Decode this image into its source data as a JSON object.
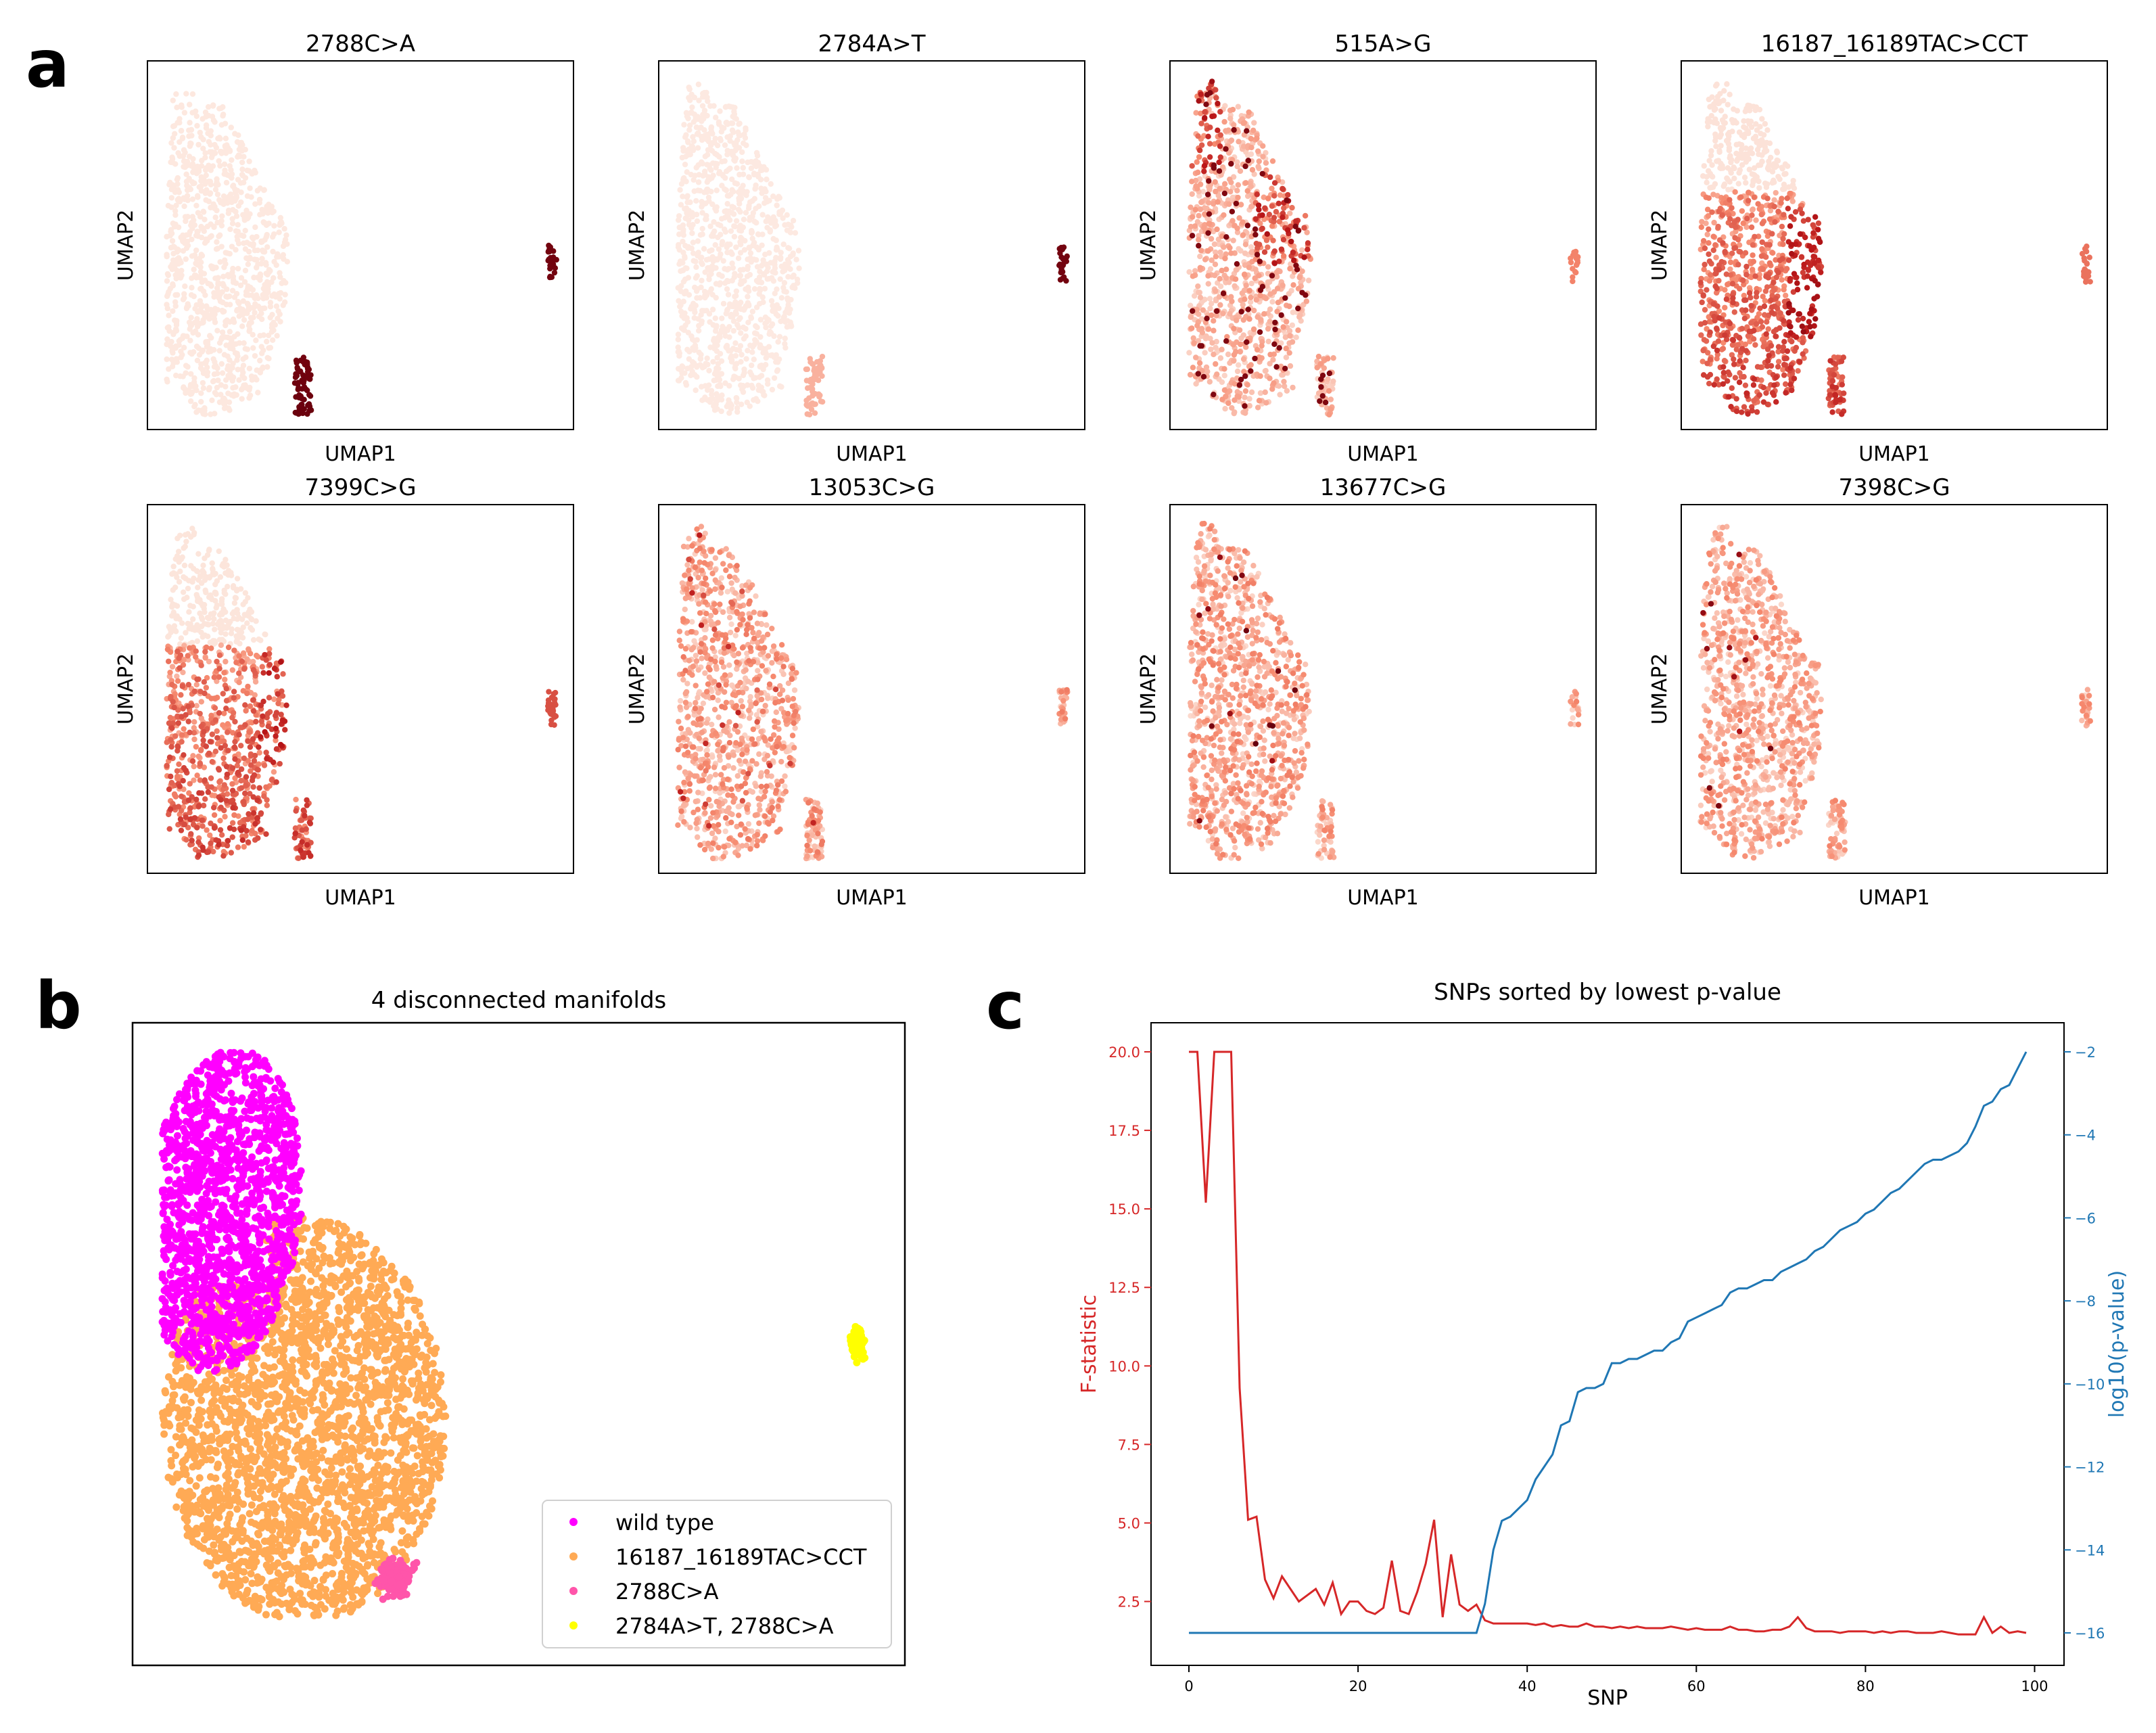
{
  "panel_letters": {
    "a": "a",
    "b": "b",
    "c": "c"
  },
  "colors": {
    "reds_light": "#fdeee6",
    "reds_mid": "#f6896e",
    "reds_dark": "#ba1618",
    "reds_darkest": "#67000d",
    "f_line": "#d62728",
    "p_line": "#1f77b4",
    "wild_type": "#ff00ff",
    "m16187": "#ffaa55",
    "m2788": "#ff55aa",
    "m2784": "#ffff00"
  },
  "panel_a": {
    "xlabel": "UMAP1",
    "ylabel": "UMAP2",
    "titles": [
      "2788C>A",
      "2784A>T",
      "515A>G",
      "16187_16189TAC>CCT",
      "7399C>G",
      "13053C>G",
      "13677C>G",
      "7398C>G"
    ]
  },
  "chart_data": [
    {
      "type": "scatter",
      "title": "4 disconnected manifolds",
      "legend_position": "lower-right",
      "series": [
        {
          "name": "wild type",
          "color": "#ff00ff"
        },
        {
          "name": "16187_16189TAC>CCT",
          "color": "#ffaa55"
        },
        {
          "name": "2788C>A",
          "color": "#ff55aa"
        },
        {
          "name": "2784A>T, 2788C>A",
          "color": "#ffff00"
        }
      ]
    },
    {
      "type": "line",
      "title": "SNPs sorted by lowest p-value",
      "xlabel": "SNP",
      "xlim": [
        0,
        99
      ],
      "xticks": [
        0,
        20,
        40,
        60,
        80,
        100
      ],
      "y_left": {
        "label": "F-statistic",
        "ticks": [
          2.5,
          5.0,
          7.5,
          10.0,
          12.5,
          15.0,
          17.5,
          20.0
        ]
      },
      "y_right": {
        "label": "log10(p-value)",
        "ticks": [
          -16,
          -14,
          -12,
          -10,
          -8,
          -6,
          -4,
          -2
        ]
      },
      "series": [
        {
          "name": "F-statistic",
          "axis": "left",
          "color": "#d62728",
          "values": [
            20.0,
            20.0,
            15.2,
            20.0,
            20.0,
            20.0,
            9.3,
            5.1,
            5.2,
            3.2,
            2.6,
            3.3,
            2.9,
            2.5,
            2.7,
            2.9,
            2.4,
            3.1,
            2.1,
            2.5,
            2.5,
            2.2,
            2.1,
            2.3,
            3.8,
            2.2,
            2.1,
            2.8,
            3.7,
            5.1,
            2.0,
            4.0,
            2.4,
            2.2,
            2.4,
            1.9,
            1.8,
            1.8,
            1.8,
            1.8,
            1.8,
            1.75,
            1.8,
            1.7,
            1.75,
            1.7,
            1.7,
            1.8,
            1.7,
            1.7,
            1.65,
            1.7,
            1.65,
            1.7,
            1.65,
            1.65,
            1.65,
            1.7,
            1.65,
            1.6,
            1.65,
            1.6,
            1.6,
            1.6,
            1.7,
            1.6,
            1.6,
            1.55,
            1.55,
            1.6,
            1.6,
            1.7,
            2.0,
            1.65,
            1.55,
            1.55,
            1.55,
            1.5,
            1.55,
            1.55,
            1.55,
            1.5,
            1.55,
            1.5,
            1.55,
            1.55,
            1.5,
            1.5,
            1.5,
            1.55,
            1.5,
            1.45,
            1.45,
            1.45,
            2.0,
            1.5,
            1.7,
            1.5,
            1.55,
            1.5
          ]
        },
        {
          "name": "log10(p-value)",
          "axis": "right",
          "color": "#1f77b4",
          "values": [
            -16,
            -16,
            -16,
            -16,
            -16,
            -16,
            -16,
            -16,
            -16,
            -16,
            -16,
            -16,
            -16,
            -16,
            -16,
            -16,
            -16,
            -16,
            -16,
            -16,
            -16,
            -16,
            -16,
            -16,
            -16,
            -16,
            -16,
            -16,
            -16,
            -16,
            -16,
            -16,
            -16,
            -16,
            -16,
            -15.3,
            -14.0,
            -13.3,
            -13.2,
            -13.0,
            -12.8,
            -12.3,
            -12.0,
            -11.7,
            -11.0,
            -10.9,
            -10.2,
            -10.1,
            -10.1,
            -10.0,
            -9.5,
            -9.5,
            -9.4,
            -9.4,
            -9.3,
            -9.2,
            -9.2,
            -9.0,
            -8.9,
            -8.5,
            -8.4,
            -8.3,
            -8.2,
            -8.1,
            -7.8,
            -7.7,
            -7.7,
            -7.6,
            -7.5,
            -7.5,
            -7.3,
            -7.2,
            -7.1,
            -7.0,
            -6.8,
            -6.7,
            -6.5,
            -6.3,
            -6.2,
            -6.1,
            -5.9,
            -5.8,
            -5.6,
            -5.4,
            -5.3,
            -5.1,
            -4.9,
            -4.7,
            -4.6,
            -4.6,
            -4.5,
            -4.4,
            -4.2,
            -3.8,
            -3.3,
            -3.2,
            -2.9,
            -2.8,
            -2.4,
            -2.0
          ]
        }
      ]
    }
  ]
}
